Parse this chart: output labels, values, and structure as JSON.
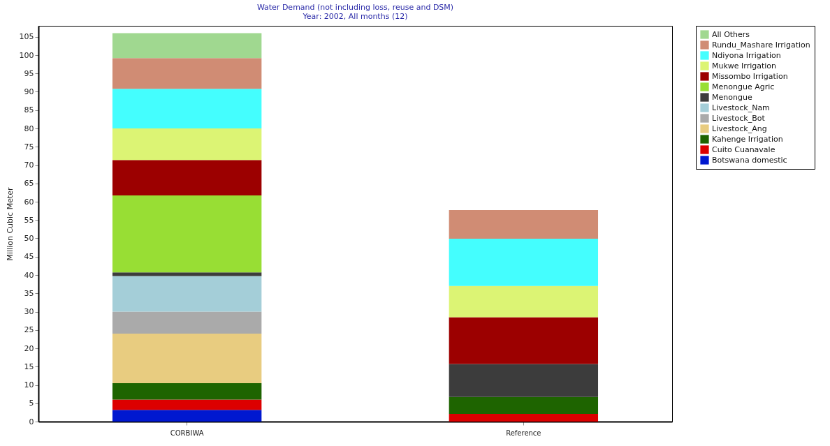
{
  "chart_data": {
    "type": "bar",
    "stacked": true,
    "title": "Water Demand (not including loss, reuse and DSM)",
    "subtitle": "Year: 2002,  All months (12)",
    "ylabel": "Million Cubic Meter",
    "categories": [
      "CORBIWA",
      "Reference"
    ],
    "ylim": [
      0,
      108
    ],
    "yticks": [
      0,
      5,
      10,
      15,
      20,
      25,
      30,
      35,
      40,
      45,
      50,
      55,
      60,
      65,
      70,
      75,
      80,
      85,
      90,
      95,
      100,
      105
    ],
    "grid": false,
    "legend": "top right",
    "series": [
      {
        "name": "Botswana domestic",
        "color": "#0018d0",
        "values": [
          3.2,
          null
        ]
      },
      {
        "name": "Cuito Cuanavale",
        "color": "#dc0000",
        "values": [
          2.8,
          2.1
        ]
      },
      {
        "name": "Kahenge Irrigation",
        "color": "#1e6400",
        "values": [
          4.5,
          4.6
        ]
      },
      {
        "name": "Livestock_Ang",
        "color": "#e8cc80",
        "values": [
          13.5,
          null
        ]
      },
      {
        "name": "Livestock_Bot",
        "color": "#aaaaaa",
        "values": [
          6,
          null
        ]
      },
      {
        "name": "Livestock_Nam",
        "color": "#a4ced8",
        "values": [
          9.7,
          null
        ]
      },
      {
        "name": "Menongue",
        "color": "#3c3c3c",
        "values": [
          1,
          9
        ]
      },
      {
        "name": "Menongue Agric",
        "color": "#98de34",
        "values": [
          21,
          null
        ]
      },
      {
        "name": "Missombo Irrigation",
        "color": "#9c0000",
        "values": [
          9.7,
          12.8
        ]
      },
      {
        "name": "Mukwe Irrigation",
        "color": "#dcf474",
        "values": [
          8.6,
          8.5
        ]
      },
      {
        "name": "Ndiyona Irrigation",
        "color": "#44fefe",
        "values": [
          10.8,
          12.9
        ]
      },
      {
        "name": "Rundu_Mashare Irrigation",
        "color": "#d08c74",
        "values": [
          8.4,
          7.8
        ]
      },
      {
        "name": "All Others",
        "color": "#a0d890",
        "values": [
          6.8,
          null
        ]
      }
    ]
  }
}
